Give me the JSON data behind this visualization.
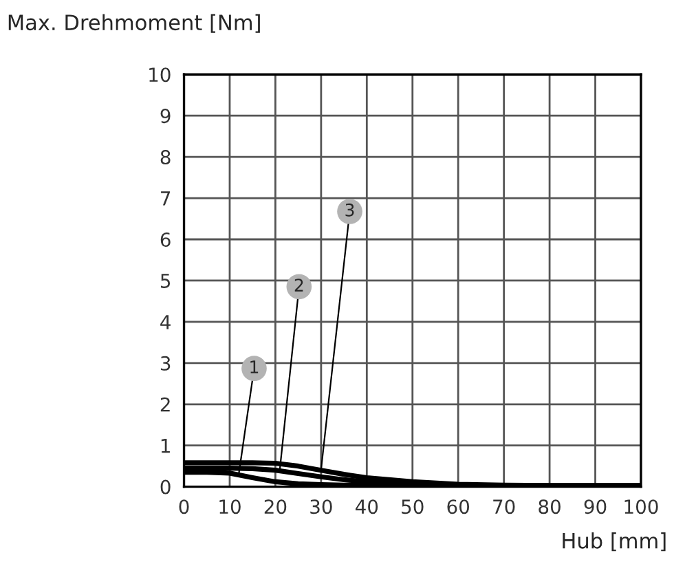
{
  "chart_data": {
    "type": "line",
    "ylabel": "Max. Drehmoment [Nm]",
    "xlabel": "Hub [mm]",
    "xlim": [
      0,
      100
    ],
    "ylim": [
      0,
      10
    ],
    "xticks": [
      0,
      10,
      20,
      30,
      40,
      50,
      60,
      70,
      80,
      90,
      100
    ],
    "yticks": [
      0,
      1,
      2,
      3,
      4,
      5,
      6,
      7,
      8,
      9,
      10
    ],
    "grid": true,
    "marker": "none",
    "line_style": "solid",
    "series": [
      {
        "color": "#000000",
        "x": [
          0,
          5,
          10,
          15,
          20,
          25,
          30,
          35,
          40,
          50,
          60,
          70,
          80,
          90,
          100
        ],
        "values": [
          0.35,
          0.35,
          0.33,
          0.22,
          0.12,
          0.07,
          0.05,
          0.04,
          0.04,
          0.03,
          0.03,
          0.02,
          0.02,
          0.02,
          0.02
        ]
      },
      {
        "color": "#000000",
        "x": [
          0,
          5,
          10,
          15,
          20,
          25,
          30,
          35,
          40,
          50,
          60,
          70,
          80,
          90,
          100
        ],
        "values": [
          0.45,
          0.45,
          0.45,
          0.44,
          0.4,
          0.32,
          0.24,
          0.17,
          0.12,
          0.07,
          0.04,
          0.03,
          0.02,
          0.02,
          0.02
        ]
      },
      {
        "color": "#000000",
        "x": [
          0,
          5,
          10,
          15,
          20,
          25,
          30,
          35,
          40,
          50,
          60,
          70,
          80,
          90,
          100
        ],
        "values": [
          0.58,
          0.58,
          0.58,
          0.58,
          0.57,
          0.5,
          0.4,
          0.3,
          0.22,
          0.12,
          0.06,
          0.04,
          0.03,
          0.03,
          0.03
        ]
      }
    ],
    "annotations": [
      {
        "text": "1",
        "x": 12,
        "y": 0.32
      },
      {
        "text": "2",
        "x": 21,
        "y": 0.45
      },
      {
        "text": "3",
        "x": 30,
        "y": 0.42
      }
    ]
  }
}
